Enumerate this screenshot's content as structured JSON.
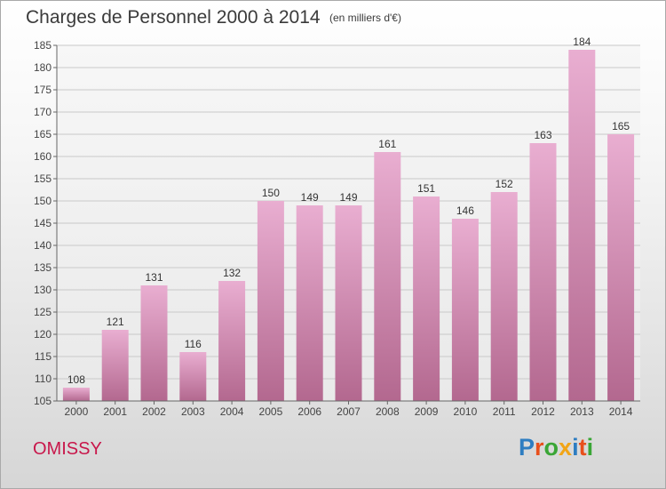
{
  "header": {
    "title": "Charges de Personnel 2000 à 2014",
    "subtitle": "(en milliers d'€)"
  },
  "footer": {
    "town": "OMISSY",
    "logo": "Proxiti"
  },
  "colors": {
    "bar_light": "#e9aed1",
    "bar_dark": "#b3688f",
    "town": "#c8174b",
    "logo": [
      "#2e7dc1",
      "#e8501c",
      "#3aa636",
      "#f2a516",
      "#2e7dc1",
      "#e8501c",
      "#3aa636"
    ]
  },
  "chart_data": {
    "type": "bar",
    "title": "Charges de Personnel 2000 à 2014",
    "subtitle": "(en milliers d'€)",
    "xlabel": "",
    "ylabel": "",
    "categories": [
      "2000",
      "2001",
      "2002",
      "2003",
      "2004",
      "2005",
      "2006",
      "2007",
      "2008",
      "2009",
      "2010",
      "2011",
      "2012",
      "2013",
      "2014"
    ],
    "values": [
      108,
      121,
      131,
      116,
      132,
      150,
      149,
      149,
      161,
      151,
      146,
      152,
      163,
      184,
      165
    ],
    "ylim": [
      105,
      185
    ],
    "yticks": [
      105,
      110,
      115,
      120,
      125,
      130,
      135,
      140,
      145,
      150,
      155,
      160,
      165,
      170,
      175,
      180,
      185
    ],
    "grid": true,
    "data_labels": true
  }
}
